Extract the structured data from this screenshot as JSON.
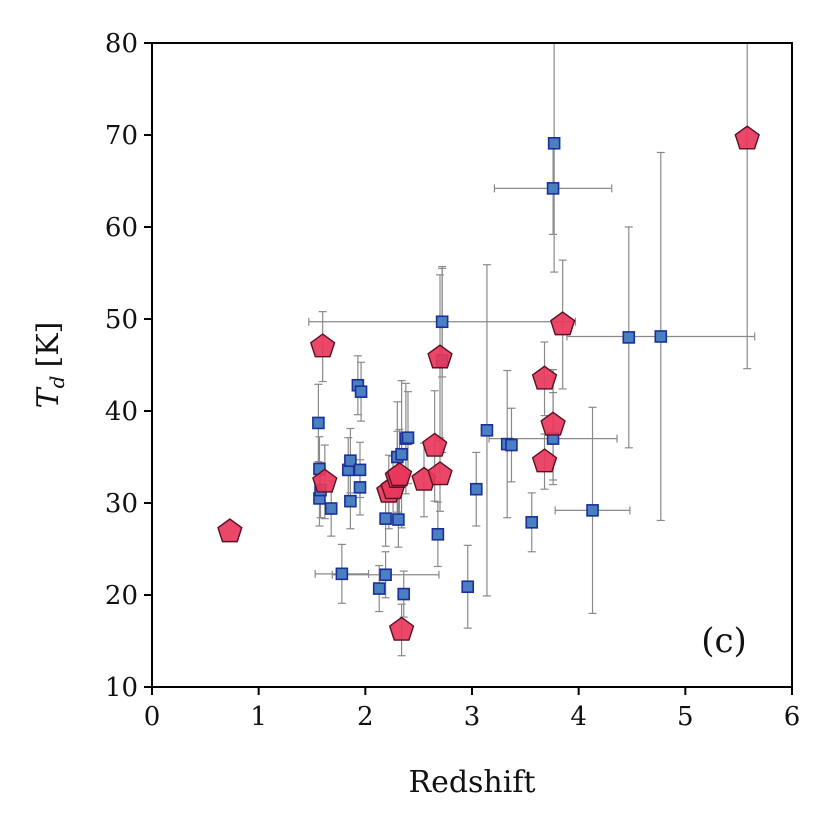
{
  "chart_data": {
    "type": "scatter",
    "title": "",
    "xlabel": "Redshift",
    "ylabel_symbol": "T",
    "ylabel_subscript": "d",
    "ylabel_unit": "[K]",
    "panel_label": "(c)",
    "xlim": [
      0,
      6
    ],
    "ylim": [
      10,
      80
    ],
    "xticks": [
      0,
      1,
      2,
      3,
      4,
      5,
      6
    ],
    "yticks": [
      10,
      20,
      30,
      40,
      50,
      60,
      70,
      80
    ],
    "xtick_labels": [
      "0",
      "1",
      "2",
      "3",
      "4",
      "5",
      "6"
    ],
    "ytick_labels": [
      "10",
      "20",
      "30",
      "40",
      "50",
      "60",
      "70",
      "80"
    ],
    "grid": false,
    "series": [
      {
        "name": "squares",
        "marker": "square",
        "color": "#4a7fc1",
        "edge": "#1a2f9a",
        "points": [
          {
            "x": 1.56,
            "y": 38.7,
            "ey": 4.2
          },
          {
            "x": 1.57,
            "y": 33.7,
            "ey": 3.5
          },
          {
            "x": 1.57,
            "y": 30.5,
            "ey": 3.0
          },
          {
            "x": 1.58,
            "y": 31.4,
            "ey": 3.0
          },
          {
            "x": 1.68,
            "y": 29.4,
            "ey": 3.0
          },
          {
            "x": 1.78,
            "y": 22.3,
            "ey": 3.2,
            "ex": 0.25
          },
          {
            "x": 1.84,
            "y": 33.6,
            "ey": 3.5
          },
          {
            "x": 1.86,
            "y": 34.6,
            "ey": 3.5
          },
          {
            "x": 1.86,
            "y": 30.2,
            "ey": 3.0
          },
          {
            "x": 1.93,
            "y": 42.8,
            "ey": 3.2
          },
          {
            "x": 1.96,
            "y": 42.1,
            "ey": 3.2
          },
          {
            "x": 1.95,
            "y": 33.6,
            "ey": 3.0
          },
          {
            "x": 1.95,
            "y": 31.7,
            "ey": 3.0
          },
          {
            "x": 2.13,
            "y": 20.7,
            "ey": 2.5
          },
          {
            "x": 2.19,
            "y": 22.2,
            "ey": 2.5,
            "ex": 0.5
          },
          {
            "x": 2.19,
            "y": 28.3,
            "ey": 3.0
          },
          {
            "x": 2.3,
            "y": 35.0,
            "ey": 6.0
          },
          {
            "x": 2.31,
            "y": 28.2,
            "ey": 3.0
          },
          {
            "x": 2.34,
            "y": 35.3,
            "ey": 8.0
          },
          {
            "x": 2.36,
            "y": 20.1,
            "ey": 2.5
          },
          {
            "x": 2.38,
            "y": 37.0,
            "ey": 6.0
          },
          {
            "x": 2.4,
            "y": 37.1,
            "ey": 5.0
          },
          {
            "x": 2.68,
            "y": 26.6,
            "ey": 3.5
          },
          {
            "x": 2.72,
            "y": 49.7,
            "ey": 6.0,
            "ex": 1.25
          },
          {
            "x": 2.72,
            "y": 45.5,
            "ey": 10.0
          },
          {
            "x": 2.96,
            "y": 20.9,
            "ey": 4.5
          },
          {
            "x": 3.04,
            "y": 31.5,
            "ey": 4.0
          },
          {
            "x": 3.14,
            "y": 37.9,
            "ey": 18.0
          },
          {
            "x": 3.33,
            "y": 36.4,
            "ey": 8.0
          },
          {
            "x": 3.37,
            "y": 36.3,
            "ey": 4.0
          },
          {
            "x": 3.56,
            "y": 27.9,
            "ey": 3.2
          },
          {
            "x": 3.76,
            "y": 37.0,
            "ey": 5.0,
            "ex": 0.6
          },
          {
            "x": 3.76,
            "y": 64.2,
            "ey": 5.0,
            "ex": 0.55
          },
          {
            "x": 3.77,
            "y": 69.1,
            "ey": 14.0
          },
          {
            "x": 4.13,
            "y": 29.2,
            "ey": 11.2,
            "ex": 0.35
          },
          {
            "x": 4.47,
            "y": 48.0,
            "ey": 12.0
          },
          {
            "x": 4.77,
            "y": 48.1,
            "ey": 20.0,
            "ex": 0.88
          }
        ]
      },
      {
        "name": "pentagons",
        "marker": "pentagon",
        "color": "#e8375c",
        "edge": "#5a1020",
        "points": [
          {
            "x": 0.73,
            "y": 26.9
          },
          {
            "x": 1.6,
            "y": 47.0,
            "ey": 3.8
          },
          {
            "x": 1.62,
            "y": 32.3,
            "ey": 4.0
          },
          {
            "x": 2.22,
            "y": 31.2,
            "ey": 4.0
          },
          {
            "x": 2.26,
            "y": 31.6,
            "ey": 3.5
          },
          {
            "x": 2.3,
            "y": 32.8,
            "ey": 5.0
          },
          {
            "x": 2.32,
            "y": 33.0,
            "ey": 5.0
          },
          {
            "x": 2.34,
            "y": 16.2,
            "ey": 2.8
          },
          {
            "x": 2.55,
            "y": 32.5,
            "ey": 4.0
          },
          {
            "x": 2.65,
            "y": 36.2,
            "ey": 6.0
          },
          {
            "x": 2.7,
            "y": 33.1,
            "ey": 4.0
          },
          {
            "x": 2.7,
            "y": 45.8,
            "ey": 9.0
          },
          {
            "x": 3.68,
            "y": 43.5,
            "ey": 4.0
          },
          {
            "x": 3.68,
            "y": 34.5,
            "ey": 3.0
          },
          {
            "x": 3.76,
            "y": 38.5,
            "ey": 6.0
          },
          {
            "x": 3.85,
            "y": 49.4,
            "ey": 7.0
          },
          {
            "x": 5.58,
            "y": 69.6,
            "ey": 25.0
          }
        ]
      }
    ],
    "errorbar_color": "#8a8a8a"
  }
}
